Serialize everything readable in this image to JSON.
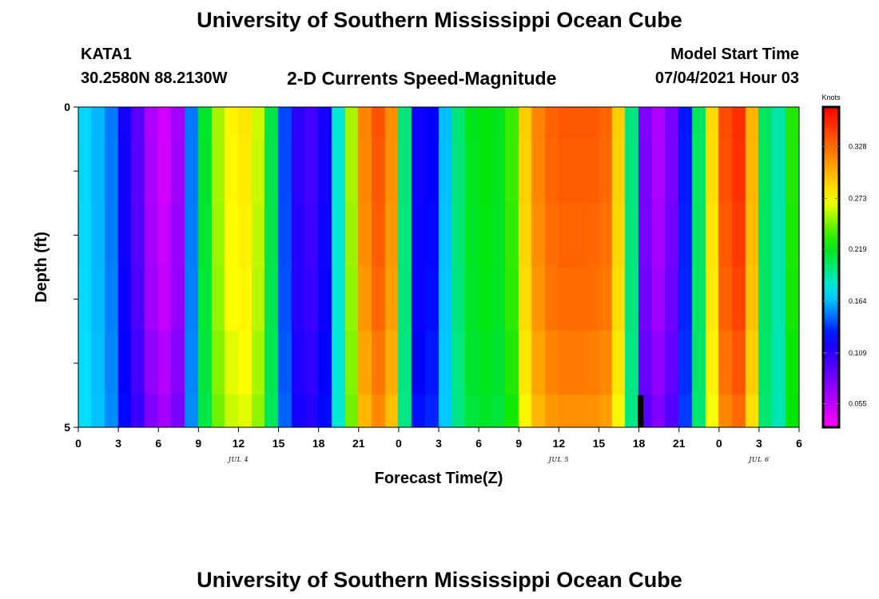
{
  "page": {
    "title_top": "University of Southern Mississippi Ocean Cube",
    "title_bottom": "University of Southern Mississippi Ocean Cube",
    "station_id": "KATA1",
    "station_coords": "30.2580N  88.2130W",
    "chart_subtitle": "2-D Currents Speed-Magnitude",
    "model_start_label": "Model Start Time",
    "model_start_value": "07/04/2021 Hour 03"
  },
  "chart_data": {
    "type": "heatmap",
    "title": "2-D Currents Speed-Magnitude",
    "xlabel": "Forecast Time(Z)",
    "ylabel": "Depth (ft)",
    "x_unit": "hours since 07/04/2021 00Z",
    "xlim": [
      0,
      54
    ],
    "ylim": [
      0,
      5
    ],
    "y_inverted": true,
    "x_ticks": [
      0,
      3,
      6,
      9,
      12,
      15,
      18,
      21,
      24,
      27,
      30,
      33,
      36,
      39,
      42,
      45,
      48,
      51,
      54
    ],
    "x_tick_labels": [
      "0",
      "3",
      "6",
      "9",
      "12",
      "15",
      "18",
      "21",
      "0",
      "3",
      "6",
      "9",
      "12",
      "15",
      "18",
      "21",
      "0",
      "3",
      "6"
    ],
    "y_ticks": [
      0,
      1,
      2,
      3,
      4,
      5
    ],
    "y_tick_labels": [
      "0",
      "",
      "",
      "",
      "",
      "5"
    ],
    "date_labels": [
      {
        "x": 12,
        "text": "JUL 4"
      },
      {
        "x": 36,
        "text": "JUL 5"
      },
      {
        "x": 51,
        "text": "JUL 6"
      }
    ],
    "now_marker": {
      "x": 42.1,
      "depth_from": 4.5,
      "depth_to": 5
    },
    "colorbar": {
      "label": "Knots",
      "min": 0.03,
      "max": 0.37,
      "ticks": [
        0.055,
        0.109,
        0.164,
        0.219,
        0.273,
        0.328
      ],
      "tick_labels": [
        "0.055",
        "0.109",
        "0.164",
        "0.219",
        "0.273",
        "0.328"
      ]
    },
    "depth_levels": [
      0.25,
      1.0,
      2.0,
      3.0,
      4.0,
      4.75
    ],
    "time_hours": [
      0.5,
      1.5,
      2.5,
      3.5,
      4.5,
      5.5,
      6.5,
      7.5,
      8.5,
      9.5,
      10.5,
      11.5,
      12.5,
      13.5,
      14.5,
      15.5,
      16.5,
      17.5,
      18.5,
      19.5,
      20.5,
      21.5,
      22.5,
      23.5,
      24.5,
      25.5,
      26.5,
      27.5,
      28.5,
      29.5,
      30.5,
      31.5,
      32.5,
      33.5,
      34.5,
      35.5,
      36.5,
      37.5,
      38.5,
      39.5,
      40.5,
      41.5,
      42.5,
      43.5,
      44.5,
      45.5,
      46.5,
      47.5,
      48.5,
      49.5,
      50.5,
      51.5,
      52.5,
      53.5
    ],
    "speed_profile": [
      0.17,
      0.163,
      0.15,
      0.118,
      0.092,
      0.06,
      0.046,
      0.065,
      0.15,
      0.215,
      0.255,
      0.275,
      0.28,
      0.262,
      0.21,
      0.14,
      0.108,
      0.1,
      0.118,
      0.182,
      0.255,
      0.318,
      0.338,
      0.315,
      0.2,
      0.12,
      0.125,
      0.165,
      0.2,
      0.218,
      0.222,
      0.218,
      0.235,
      0.29,
      0.318,
      0.332,
      0.336,
      0.336,
      0.335,
      0.33,
      0.29,
      0.2,
      0.078,
      0.06,
      0.08,
      0.13,
      0.205,
      0.285,
      0.34,
      0.352,
      0.3,
      0.205,
      0.19,
      0.23
    ],
    "depth_factor": [
      1.0,
      0.99,
      0.97,
      0.95,
      0.91,
      0.86
    ],
    "units": "Knots"
  }
}
